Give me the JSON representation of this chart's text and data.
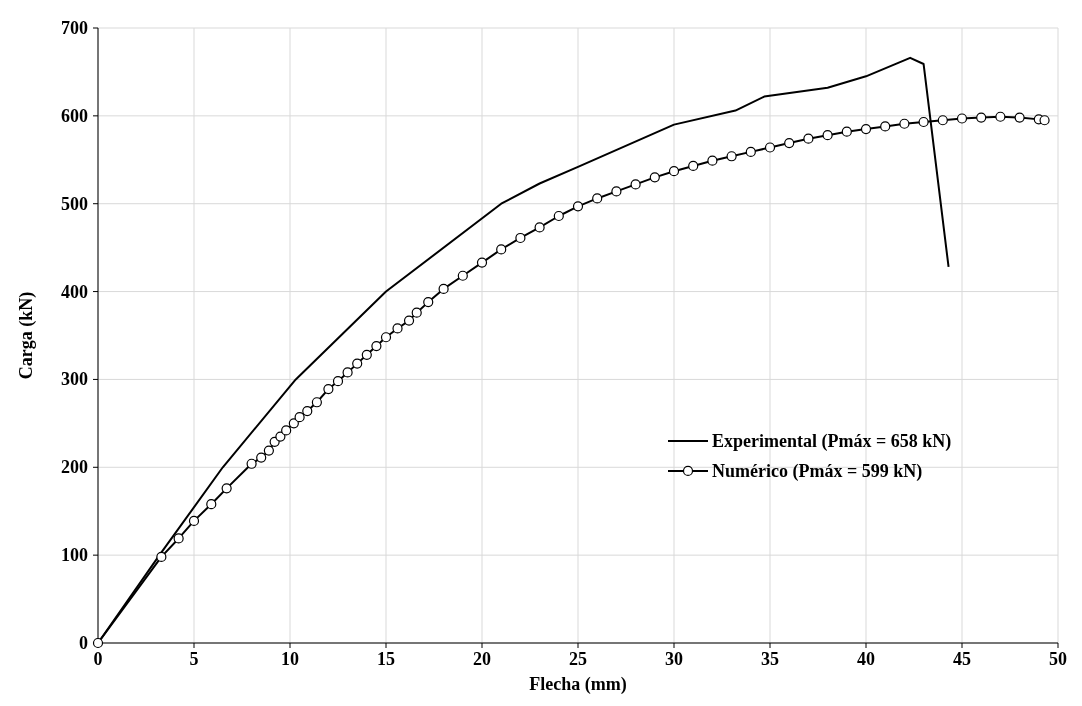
{
  "chart_data": {
    "type": "line",
    "xlabel": "Flecha (mm)",
    "ylabel": "Carga (kN)",
    "xlim": [
      0,
      50
    ],
    "xticks": [
      0,
      5,
      10,
      15,
      20,
      25,
      30,
      35,
      40,
      45,
      50
    ],
    "ylim": [
      0,
      700
    ],
    "yticks": [
      0,
      100,
      200,
      300,
      400,
      500,
      600,
      700
    ],
    "grid": true,
    "legend": "right",
    "series": [
      {
        "name": "Experimental (Pmáx = 658 kN)",
        "color": "#000000",
        "marker": "none",
        "x": [
          0,
          3.2,
          6.5,
          10.3,
          15,
          21,
          23,
          25,
          30,
          33.2,
          34.7,
          38,
          40,
          42.3,
          43,
          44.3
        ],
        "values": [
          0,
          100,
          200,
          300,
          400,
          500,
          523,
          542,
          590,
          606,
          622,
          632,
          645,
          666,
          659,
          428
        ]
      },
      {
        "name": "Numérico (Pmáx = 599 kN)",
        "color": "#000000",
        "marker": "circle",
        "x": [
          0,
          3.3,
          4.2,
          5.0,
          5.9,
          6.7,
          8,
          8.5,
          8.9,
          9.2,
          9.5,
          9.8,
          10.2,
          10.5,
          10.9,
          11.4,
          12,
          12.5,
          13,
          13.5,
          14,
          14.5,
          15,
          15.6,
          16.2,
          16.6,
          17.2,
          18,
          19,
          20,
          21,
          22,
          23,
          24,
          25,
          26,
          27,
          28,
          29,
          30,
          31,
          32,
          33,
          34,
          35,
          36,
          37,
          38,
          39,
          40,
          41,
          42,
          43,
          44,
          45,
          46,
          47,
          48,
          49,
          49.3
        ],
        "values": [
          0,
          98,
          119,
          139,
          158,
          176,
          204,
          211,
          219,
          229,
          235,
          242,
          250,
          257,
          264,
          274,
          289,
          298,
          308,
          318,
          328,
          338,
          348,
          358,
          367,
          376,
          388,
          403,
          418,
          433,
          448,
          461,
          473,
          486,
          497,
          506,
          514,
          522,
          530,
          537,
          543,
          549,
          554,
          559,
          564,
          569,
          574,
          578,
          582,
          585,
          588,
          591,
          593,
          595,
          597,
          598,
          599,
          598,
          596,
          595
        ]
      }
    ]
  }
}
